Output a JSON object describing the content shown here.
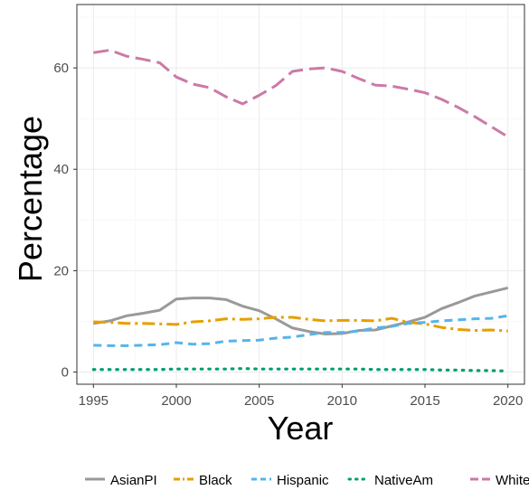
{
  "chart_data": {
    "type": "line",
    "xlabel": "Year",
    "ylabel": "Percentage",
    "xlim": [
      1994,
      2021
    ],
    "ylim": [
      -2.4,
      72.5
    ],
    "x_ticks": [
      1995,
      2000,
      2005,
      2010,
      2015,
      2020
    ],
    "y_ticks": [
      0,
      20,
      40,
      60
    ],
    "grid": true,
    "legend_position": "bottom",
    "x": [
      1995,
      1996,
      1997,
      1998,
      1999,
      2000,
      2001,
      2002,
      2003,
      2004,
      2005,
      2006,
      2007,
      2008,
      2009,
      2010,
      2011,
      2012,
      2013,
      2014,
      2015,
      2016,
      2017,
      2018,
      2019,
      2020
    ],
    "series": [
      {
        "name": "AsianPI",
        "color": "#999999",
        "dash": "solid",
        "values": [
          9.6,
          10.1,
          11.1,
          11.6,
          12.2,
          14.4,
          14.6,
          14.6,
          14.3,
          13.0,
          12.1,
          10.5,
          8.7,
          8.0,
          7.5,
          7.6,
          8.2,
          8.3,
          9.1,
          9.9,
          10.8,
          12.5,
          13.7,
          15.0,
          15.8,
          16.6
        ]
      },
      {
        "name": "Black",
        "color": "#E69F00",
        "dash": "longdash-dot",
        "values": [
          9.9,
          9.8,
          9.6,
          9.6,
          9.5,
          9.4,
          9.9,
          10.1,
          10.5,
          10.4,
          10.5,
          10.8,
          10.8,
          10.4,
          10.1,
          10.2,
          10.2,
          10.1,
          10.6,
          9.8,
          9.5,
          8.8,
          8.4,
          8.2,
          8.3,
          8.1
        ]
      },
      {
        "name": "Hispanic",
        "color": "#56B4E9",
        "dash": "dashed",
        "values": [
          5.3,
          5.2,
          5.2,
          5.3,
          5.4,
          5.8,
          5.5,
          5.6,
          6.1,
          6.2,
          6.3,
          6.7,
          6.9,
          7.4,
          7.8,
          7.8,
          8.1,
          8.7,
          9.0,
          9.6,
          9.8,
          10.1,
          10.3,
          10.5,
          10.6,
          11.1
        ]
      },
      {
        "name": "NativeAm",
        "color": "#009E73",
        "dash": "dotted",
        "values": [
          0.5,
          0.5,
          0.5,
          0.5,
          0.5,
          0.6,
          0.6,
          0.6,
          0.6,
          0.7,
          0.6,
          0.6,
          0.6,
          0.6,
          0.6,
          0.6,
          0.6,
          0.5,
          0.5,
          0.5,
          0.5,
          0.4,
          0.4,
          0.3,
          0.3,
          0.2
        ]
      },
      {
        "name": "White",
        "color": "#CC79A7",
        "dash": "longdash",
        "values": [
          63.0,
          63.5,
          62.3,
          61.7,
          61.0,
          58.2,
          56.8,
          56.1,
          54.3,
          52.9,
          54.6,
          56.5,
          59.3,
          59.8,
          60.0,
          59.3,
          57.9,
          56.6,
          56.4,
          55.8,
          55.1,
          53.8,
          52.2,
          50.4,
          48.4,
          46.4
        ]
      }
    ]
  }
}
